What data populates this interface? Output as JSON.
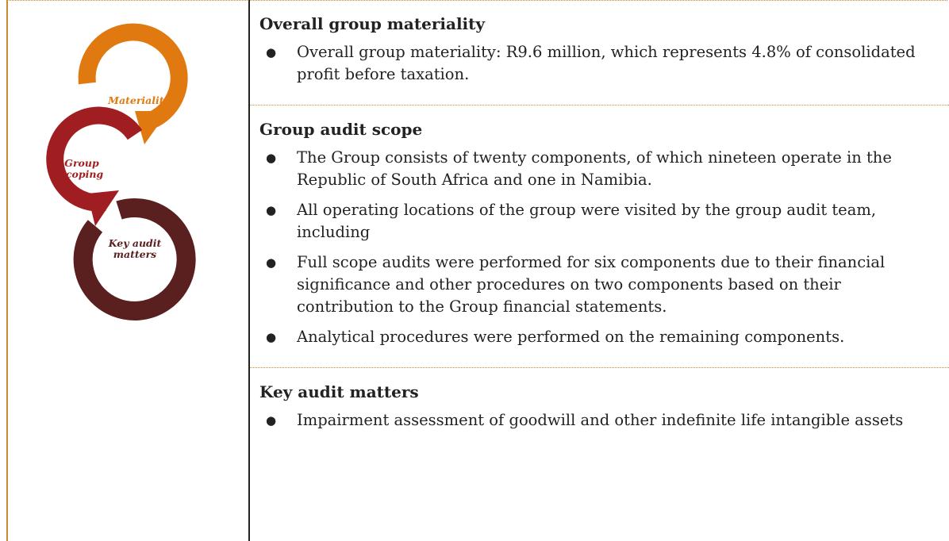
{
  "diagram": {
    "nodes": [
      {
        "label": "Materiality"
      },
      {
        "label": "Group scoping"
      },
      {
        "label": "Key audit matters"
      }
    ]
  },
  "sections": [
    {
      "heading": "Overall group materiality",
      "bullets": [
        "Overall group materiality: R9.6 million, which represents 4.8% of consolidated profit before taxation."
      ]
    },
    {
      "heading": "Group audit scope",
      "bullets": [
        "The Group consists of twenty components, of which nineteen operate in the Republic of South Africa and one in Namibia.",
        "All operating locations of the group were visited by the group audit team, including",
        "Full scope audits were performed for six  components due to their financial significance and other procedures on two components based on their contribution to the Group financial statements.",
        "Analytical procedures were performed on the remaining components."
      ]
    },
    {
      "heading": "Key audit matters",
      "bullets": [
        "Impairment assessment of goodwill and other indefinite life intangible assets"
      ]
    }
  ]
}
